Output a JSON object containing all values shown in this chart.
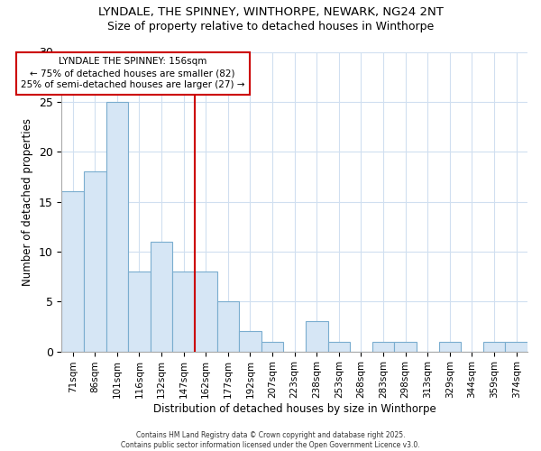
{
  "title_line1": "LYNDALE, THE SPINNEY, WINTHORPE, NEWARK, NG24 2NT",
  "title_line2": "Size of property relative to detached houses in Winthorpe",
  "xlabel": "Distribution of detached houses by size in Winthorpe",
  "ylabel": "Number of detached properties",
  "categories": [
    "71sqm",
    "86sqm",
    "101sqm",
    "116sqm",
    "132sqm",
    "147sqm",
    "162sqm",
    "177sqm",
    "192sqm",
    "207sqm",
    "223sqm",
    "238sqm",
    "253sqm",
    "268sqm",
    "283sqm",
    "298sqm",
    "313sqm",
    "329sqm",
    "344sqm",
    "359sqm",
    "374sqm"
  ],
  "values": [
    16,
    18,
    25,
    8,
    11,
    8,
    8,
    5,
    2,
    1,
    0,
    3,
    1,
    0,
    1,
    1,
    0,
    1,
    0,
    1,
    1
  ],
  "bar_color": "#d6e6f5",
  "bar_edge_color": "#7aadcf",
  "red_line_index": 6,
  "annotation_title": "LYNDALE THE SPINNEY: 156sqm",
  "annotation_line2": "← 75% of detached houses are smaller (82)",
  "annotation_line3": "25% of semi-detached houses are larger (27) →",
  "footer": "Contains HM Land Registry data © Crown copyright and database right 2025.\nContains public sector information licensed under the Open Government Licence v3.0.",
  "ylim": [
    0,
    30
  ],
  "yticks": [
    0,
    5,
    10,
    15,
    20,
    25,
    30
  ],
  "background_color": "#ffffff",
  "plot_bg_color": "#ffffff",
  "grid_color": "#d0dff0",
  "annotation_box_color": "#ffffff",
  "annotation_box_edge": "#cc0000",
  "red_line_color": "#cc0000"
}
